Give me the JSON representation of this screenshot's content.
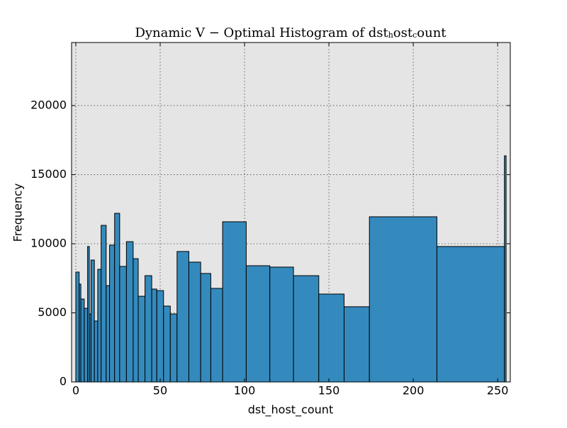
{
  "chart_data": {
    "type": "histogram",
    "title_parts": [
      "Dynamic V − Optimal Histogram of dst",
      "h",
      "ost",
      "c",
      "ount"
    ],
    "x_label": "dst_host_count",
    "y_label": "Frequency",
    "bins": [
      0,
      2,
      3,
      5,
      7,
      8,
      9,
      11,
      13,
      15,
      18,
      20,
      23,
      26,
      30,
      34,
      37,
      41,
      45,
      48,
      52,
      56,
      60,
      67,
      74,
      80,
      87,
      101,
      115,
      129,
      144,
      159,
      174,
      214,
      254,
      255
    ],
    "values": [
      7950,
      7080,
      6000,
      5330,
      9800,
      4920,
      8820,
      4410,
      8150,
      11330,
      6970,
      9900,
      12200,
      8360,
      10150,
      8920,
      6200,
      7690,
      6720,
      6610,
      5490,
      4920,
      9440,
      8670,
      7850,
      6770,
      11590,
      8410,
      8310,
      7690,
      6360,
      5440,
      11950,
      9800,
      16360
    ],
    "color": "#348abd",
    "xlim": [
      -2.5,
      257.5
    ],
    "ylim": [
      0,
      24560
    ],
    "xticks": [
      0,
      50,
      100,
      150,
      200,
      250
    ],
    "yticks": [
      0,
      5000,
      10000,
      15000,
      20000
    ],
    "grid": true
  }
}
